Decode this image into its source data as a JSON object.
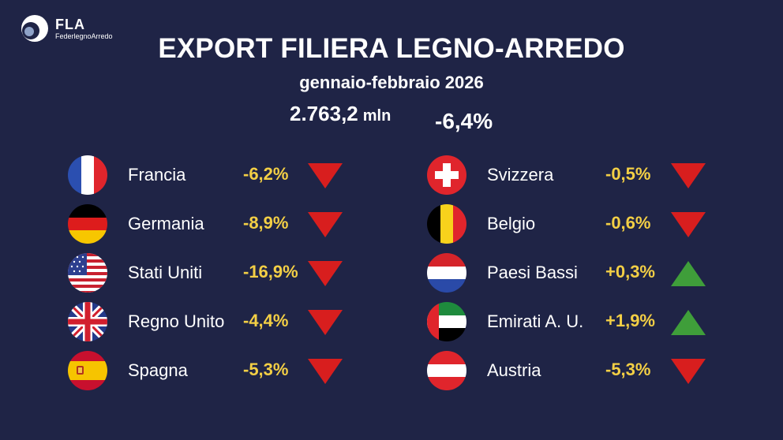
{
  "brand": {
    "name": "FLA",
    "sub": "FederlegnoArredo"
  },
  "header": {
    "title": "EXPORT FILIERA LEGNO-ARREDO",
    "period": "gennaio-febbraio 2026",
    "total_value": "2.763,2",
    "total_unit": "mln",
    "total_change": "-6,4%"
  },
  "colors": {
    "background": "#1f2446",
    "percent_text": "#f3cf45",
    "down_arrow": "#d81e1e",
    "up_arrow": "#3f9e3a"
  },
  "countries_left": [
    {
      "name": "Francia",
      "change": "-6,2%",
      "direction": "down",
      "flag": "france-flag-icon"
    },
    {
      "name": "Germania",
      "change": "-8,9%",
      "direction": "down",
      "flag": "germany-flag-icon"
    },
    {
      "name": "Stati Uniti",
      "change": "-16,9%",
      "direction": "down",
      "flag": "usa-flag-icon"
    },
    {
      "name": "Regno Unito",
      "change": "-4,4%",
      "direction": "down",
      "flag": "uk-flag-icon"
    },
    {
      "name": "Spagna",
      "change": "-5,3%",
      "direction": "down",
      "flag": "spain-flag-icon"
    }
  ],
  "countries_right": [
    {
      "name": "Svizzera",
      "change": "-0,5%",
      "direction": "down",
      "flag": "switzerland-flag-icon"
    },
    {
      "name": "Belgio",
      "change": "-0,6%",
      "direction": "down",
      "flag": "belgium-flag-icon"
    },
    {
      "name": "Paesi Bassi",
      "change": "+0,3%",
      "direction": "up",
      "flag": "netherlands-flag-icon"
    },
    {
      "name": "Emirati A. U.",
      "change": "+1,9%",
      "direction": "up",
      "flag": "uae-flag-icon"
    },
    {
      "name": "Austria",
      "change": "-5,3%",
      "direction": "down",
      "flag": "austria-flag-icon"
    }
  ]
}
